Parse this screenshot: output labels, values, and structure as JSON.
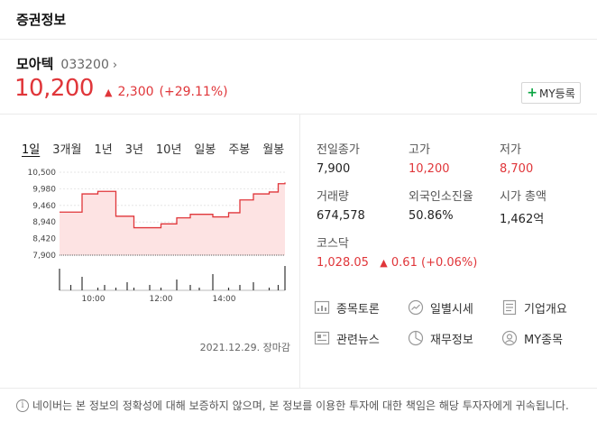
{
  "header": {
    "title": "증권정보"
  },
  "stock": {
    "name": "모아텍",
    "code": "033200",
    "chevron": "›",
    "price": "10,200",
    "change_arrow": "▲",
    "change": "2,300",
    "change_pct": "(+29.11%)",
    "color_up": "#e0363a"
  },
  "my_button": {
    "plus": "+",
    "label": "MY등록"
  },
  "tabs": [
    "1일",
    "3개월",
    "1년",
    "3년",
    "10년",
    "일봉",
    "주봉",
    "월봉"
  ],
  "chart_data": {
    "type": "line",
    "title": "",
    "y_ticks": [
      "10,500",
      "9,980",
      "9,460",
      "8,940",
      "8,420",
      "7,900"
    ],
    "x_ticks": [
      "10:00",
      "12:00",
      "14:00"
    ],
    "ylim": [
      7900,
      10500
    ],
    "prev_close": 7900,
    "x": [
      0,
      0.05,
      0.1,
      0.17,
      0.2,
      0.25,
      0.3,
      0.33,
      0.4,
      0.45,
      0.52,
      0.58,
      0.62,
      0.68,
      0.75,
      0.8,
      0.86,
      0.93,
      0.97,
      1.0
    ],
    "y": [
      9250,
      9250,
      9820,
      9900,
      9900,
      9120,
      9120,
      8760,
      8760,
      8880,
      9070,
      9180,
      9180,
      9100,
      9230,
      9630,
      9820,
      9880,
      10140,
      10180
    ],
    "volume": [
      0.8,
      0.2,
      0.5,
      0.1,
      0.2,
      0.1,
      0.3,
      0.1,
      0.2,
      0.1,
      0.4,
      0.2,
      0.1,
      0.6,
      0.1,
      0.2,
      0.3,
      0.1,
      0.2,
      0.9
    ],
    "date_label": "2021.12.29. 장마감",
    "line_color": "#e0363a",
    "fill_color": "#fde3e3"
  },
  "stats": {
    "prev_close_label": "전일종가",
    "prev_close": "7,900",
    "high_label": "고가",
    "high": "10,200",
    "low_label": "저가",
    "low": "8,700",
    "volume_label": "거래량",
    "volume": "674,578",
    "foreign_label": "외국인소진율",
    "foreign": "50.86%",
    "mktcap_label": "시가 총액",
    "mktcap": "1,462억",
    "index_label": "코스닥",
    "index_value": "1,028.05",
    "index_arrow": "▲",
    "index_change": "0.61",
    "index_pct": "(+0.06%)"
  },
  "links": {
    "discussion": "종목토론",
    "daily": "일별시세",
    "company": "기업개요",
    "news": "관련뉴스",
    "finance": "재무정보",
    "my": "MY종목"
  },
  "notice": {
    "icon": "i",
    "text": "네이버는 본 정보의 정확성에 대해 보증하지 않으며, 본 정보를 이용한 투자에 대한 책임은 해당 투자자에게 귀속됩니다."
  }
}
